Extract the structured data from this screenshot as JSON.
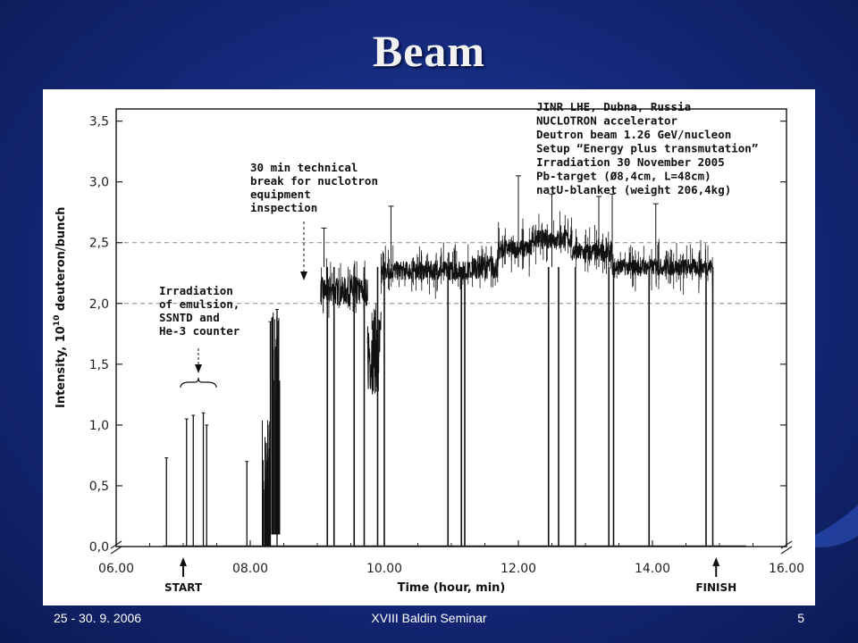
{
  "slide": {
    "title": "Beam",
    "footer_date": "25 - 30. 9. 2006",
    "footer_center": "XVIII Baldin Seminar",
    "footer_page": "5"
  },
  "colors": {
    "background": "#14287a",
    "title": "#f2f2f2",
    "data": "#111111",
    "grid": "#888888"
  },
  "chart_data": {
    "type": "line",
    "title": "",
    "xlabel": "Time (hour, min)",
    "ylabel_prefix": "Intensity, 10",
    "ylabel_exponent": "10",
    "ylabel_suffix": " deuteron/bunch",
    "x_ticks": [
      "06.00",
      "08.00",
      "10.00",
      "12.00",
      "14.00",
      "16.00"
    ],
    "x_tick_values": [
      6,
      8,
      10,
      12,
      14,
      16
    ],
    "y_ticks": [
      "0,0",
      "0,5",
      "1,0",
      "1,5",
      "2,0",
      "2,5",
      "3,0",
      "3,5"
    ],
    "y_tick_values": [
      0,
      0.5,
      1.0,
      1.5,
      2.0,
      2.5,
      3.0,
      3.5
    ],
    "xlim": [
      6,
      16
    ],
    "ylim": [
      0,
      3.6
    ],
    "reference_lines": [
      2.0,
      2.5
    ],
    "grid": false,
    "info_box": [
      "JINR LHE, Dubna, Russia",
      "NUCLOTRON accelerator",
      "Deutron beam 1.26 GeV/nucleon",
      "Setup “Energy plus transmutation”",
      "Irradiation 30 November 2005",
      "Pb-target (Ø8,4cm, L=48cm)",
      "natU-blanket (weight 206,4kg)"
    ],
    "annotations": {
      "break": [
        "30 min technical",
        "break for nuclotron",
        "equipment",
        "inspection"
      ],
      "irradiation": [
        "Irradiation",
        "of emulsion,",
        "SSNTD and",
        "He-3 counter"
      ],
      "start": "START",
      "finish": "FINISH"
    },
    "segments": [
      {
        "x0": 9.05,
        "x1": 9.75,
        "level": 2.1,
        "noise": 0.12
      },
      {
        "x0": 9.75,
        "x1": 9.95,
        "level": 1.6,
        "noise": 0.35
      },
      {
        "x0": 9.95,
        "x1": 11.3,
        "level": 2.27,
        "noise": 0.08
      },
      {
        "x0": 11.3,
        "x1": 11.7,
        "level": 2.3,
        "noise": 0.1
      },
      {
        "x0": 11.7,
        "x1": 12.2,
        "level": 2.45,
        "noise": 0.08
      },
      {
        "x0": 12.2,
        "x1": 12.8,
        "level": 2.53,
        "noise": 0.08
      },
      {
        "x0": 12.8,
        "x1": 13.4,
        "level": 2.42,
        "noise": 0.08
      },
      {
        "x0": 13.4,
        "x1": 14.9,
        "level": 2.3,
        "noise": 0.07
      }
    ],
    "early_bursts": [
      {
        "x": 6.75,
        "y": 0.73
      },
      {
        "x": 7.05,
        "y": 1.05
      },
      {
        "x": 7.15,
        "y": 1.08
      },
      {
        "x": 7.3,
        "y": 1.1
      },
      {
        "x": 7.35,
        "y": 1.0
      },
      {
        "x": 7.95,
        "y": 0.7
      },
      {
        "x": 8.3,
        "y": 1.85
      },
      {
        "x": 8.4,
        "y": 1.95
      }
    ],
    "dropouts": [
      9.15,
      9.25,
      9.55,
      9.7,
      9.9,
      10.0,
      10.95,
      11.15,
      11.2,
      12.45,
      12.6,
      12.85,
      13.35,
      13.42,
      13.95,
      14.8,
      14.9
    ],
    "spikes": [
      {
        "x": 9.1,
        "y": 2.62
      },
      {
        "x": 10.1,
        "y": 2.8
      },
      {
        "x": 12.0,
        "y": 3.05
      },
      {
        "x": 12.5,
        "y": 2.9
      },
      {
        "x": 13.2,
        "y": 2.88
      },
      {
        "x": 13.4,
        "y": 2.9
      },
      {
        "x": 14.05,
        "y": 2.82
      }
    ]
  }
}
